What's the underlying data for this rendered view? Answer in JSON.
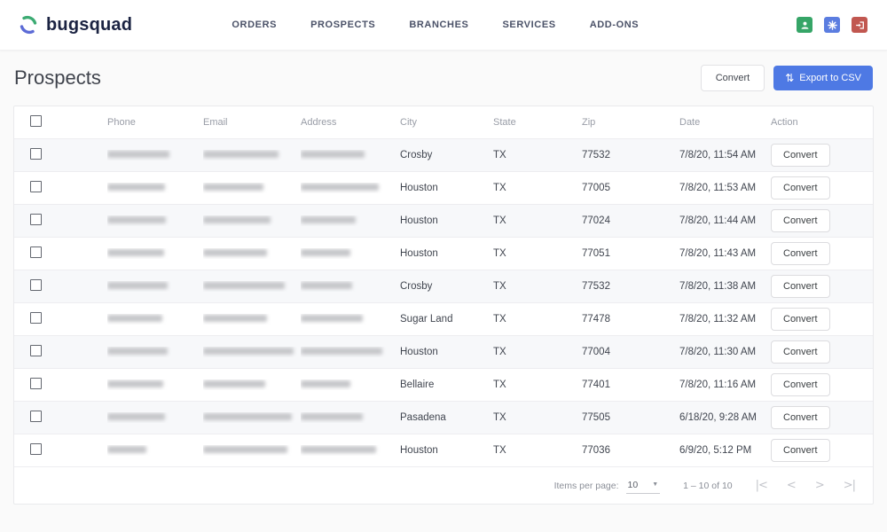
{
  "brand": {
    "name": "bugsquad",
    "logo_green": "#3cab73",
    "logo_indigo": "#5c6bd6"
  },
  "nav": {
    "items": [
      "ORDERS",
      "PROSPECTS",
      "BRANCHES",
      "SERVICES",
      "ADD-ONS"
    ]
  },
  "top_icons": [
    {
      "name": "user-icon",
      "color": "#36a567"
    },
    {
      "name": "gear-icon",
      "color": "#5b7de0"
    },
    {
      "name": "logout-icon",
      "color": "#c15750"
    }
  ],
  "page": {
    "title": "Prospects",
    "convert_label": "Convert",
    "export_label": "Export to CSV",
    "export_icon": "import-export-arrows",
    "accent_color": "#4e79e4"
  },
  "table": {
    "columns": [
      "Phone",
      "Email",
      "Address",
      "City",
      "State",
      "Zip",
      "Date",
      "Action"
    ],
    "redacted_columns": [
      "Phone",
      "Email",
      "Address"
    ],
    "rows": [
      {
        "city": "Crosby",
        "state": "TX",
        "zip": "77532",
        "date": "7/8/20, 11:54 AM",
        "action": "Convert",
        "redacted_widths": [
          70,
          85,
          72
        ]
      },
      {
        "city": "Houston",
        "state": "TX",
        "zip": "77005",
        "date": "7/8/20, 11:53 AM",
        "action": "Convert",
        "redacted_widths": [
          65,
          68,
          88
        ]
      },
      {
        "city": "Houston",
        "state": "TX",
        "zip": "77024",
        "date": "7/8/20, 11:44 AM",
        "action": "Convert",
        "redacted_widths": [
          66,
          76,
          62
        ]
      },
      {
        "city": "Houston",
        "state": "TX",
        "zip": "77051",
        "date": "7/8/20, 11:43 AM",
        "action": "Convert",
        "redacted_widths": [
          64,
          72,
          56
        ]
      },
      {
        "city": "Crosby",
        "state": "TX",
        "zip": "77532",
        "date": "7/8/20, 11:38 AM",
        "action": "Convert",
        "redacted_widths": [
          68,
          92,
          58
        ]
      },
      {
        "city": "Sugar Land",
        "state": "TX",
        "zip": "77478",
        "date": "7/8/20, 11:32 AM",
        "action": "Convert",
        "redacted_widths": [
          62,
          72,
          70
        ]
      },
      {
        "city": "Houston",
        "state": "TX",
        "zip": "77004",
        "date": "7/8/20, 11:30 AM",
        "action": "Convert",
        "redacted_widths": [
          68,
          102,
          92
        ]
      },
      {
        "city": "Bellaire",
        "state": "TX",
        "zip": "77401",
        "date": "7/8/20, 11:16 AM",
        "action": "Convert",
        "redacted_widths": [
          63,
          70,
          56
        ]
      },
      {
        "city": "Pasadena",
        "state": "TX",
        "zip": "77505",
        "date": "6/18/20, 9:28 AM",
        "action": "Convert",
        "redacted_widths": [
          65,
          100,
          70
        ]
      },
      {
        "city": "Houston",
        "state": "TX",
        "zip": "77036",
        "date": "6/9/20, 5:12 PM",
        "action": "Convert",
        "redacted_widths": [
          44,
          95,
          85
        ]
      }
    ]
  },
  "pagination": {
    "items_per_page_label": "Items per page:",
    "items_per_page_value": "10",
    "range_label": "1 – 10 of 10",
    "first_icon": "|<",
    "prev_icon": "<",
    "next_icon": ">",
    "last_icon": ">|"
  }
}
